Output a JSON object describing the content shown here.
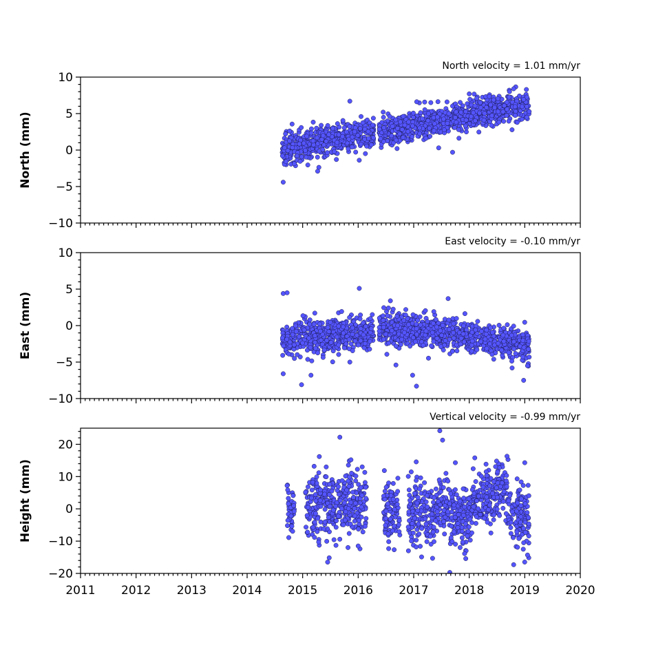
{
  "chart_data": [
    {
      "type": "scatter",
      "annotation": "North velocity = 1.01 mm/yr",
      "ylabel": "North (mm)",
      "xlim": [
        2011,
        2020
      ],
      "ylim": [
        -10,
        10
      ],
      "yticks": [
        -10,
        -5,
        0,
        5,
        10
      ],
      "xticks": [
        2011,
        2012,
        2013,
        2014,
        2015,
        2016,
        2017,
        2018,
        2019,
        2020
      ],
      "show_xtick_labels": false,
      "segments": [
        {
          "x_start": 2014.63,
          "x_end": 2016.28,
          "y_start": 0.0,
          "y_end": 2.5,
          "spread": 1.0
        },
        {
          "x_start": 2016.38,
          "x_end": 2019.08,
          "y_start": 2.5,
          "y_end": 6.3,
          "spread": 1.0
        }
      ],
      "points": [
        {
          "x": 2014.65,
          "y": -4.4
        },
        {
          "x": 2015.27,
          "y": -2.9
        },
        {
          "x": 2015.85,
          "y": 6.7
        },
        {
          "x": 2016.45,
          "y": 5.2
        },
        {
          "x": 2017.6,
          "y": 6.6
        },
        {
          "x": 2017.7,
          "y": -0.3
        },
        {
          "x": 2018.2,
          "y": 6.5
        },
        {
          "x": 2018.8,
          "y": 8.4
        },
        {
          "x": 2014.9,
          "y": -0.8
        },
        {
          "x": 2017.45,
          "y": 0.3
        }
      ]
    },
    {
      "type": "scatter",
      "annotation": "East velocity = -0.10 mm/yr",
      "ylabel": "East (mm)",
      "xlim": [
        2011,
        2020
      ],
      "ylim": [
        -10,
        10
      ],
      "yticks": [
        -10,
        -5,
        0,
        5,
        10
      ],
      "xticks": [
        2011,
        2012,
        2013,
        2014,
        2015,
        2016,
        2017,
        2018,
        2019,
        2020
      ],
      "show_xtick_labels": false,
      "segments": [
        {
          "x_start": 2014.63,
          "x_end": 2016.28,
          "y_start": -1.8,
          "y_end": -1.0,
          "spread": 1.2
        },
        {
          "x_start": 2016.38,
          "x_end": 2019.08,
          "y_start": -0.2,
          "y_end": -2.6,
          "spread": 1.1
        }
      ],
      "points": [
        {
          "x": 2014.65,
          "y": 4.4
        },
        {
          "x": 2014.72,
          "y": 4.5
        },
        {
          "x": 2016.02,
          "y": 5.1
        },
        {
          "x": 2014.98,
          "y": -8.1
        },
        {
          "x": 2016.98,
          "y": -6.8
        },
        {
          "x": 2017.05,
          "y": -8.3
        },
        {
          "x": 2015.15,
          "y": -6.8
        },
        {
          "x": 2014.65,
          "y": -6.6
        },
        {
          "x": 2018.98,
          "y": -7.5
        },
        {
          "x": 2017.62,
          "y": 3.7
        },
        {
          "x": 2016.58,
          "y": 3.4
        },
        {
          "x": 2015.85,
          "y": -5.0
        },
        {
          "x": 2016.68,
          "y": -5.4
        },
        {
          "x": 2019.05,
          "y": -5.5
        }
      ]
    },
    {
      "type": "scatter",
      "annotation": "Vertical velocity = -0.99 mm/yr",
      "ylabel": "Height (mm)",
      "xlim": [
        2011,
        2020
      ],
      "ylim": [
        -20,
        25
      ],
      "yticks": [
        -20,
        -10,
        0,
        10,
        20
      ],
      "xticks": [
        2011,
        2012,
        2013,
        2014,
        2015,
        2016,
        2017,
        2018,
        2019,
        2020
      ],
      "show_xtick_labels": true,
      "segments": [
        {
          "x_start": 2014.72,
          "x_end": 2014.85,
          "y_start": 3.0,
          "y_end": -2.0,
          "spread": 4.0
        },
        {
          "x_start": 2015.05,
          "x_end": 2016.15,
          "y_start": 1.0,
          "y_end": 2.0,
          "spread": 5.0
        },
        {
          "x_start": 2016.45,
          "x_end": 2016.75,
          "y_start": 1.0,
          "y_end": -2.0,
          "spread": 5.0
        },
        {
          "x_start": 2016.9,
          "x_end": 2018.05,
          "y_start": 0.0,
          "y_end": -3.0,
          "spread": 5.0
        },
        {
          "x_start": 2018.05,
          "x_end": 2018.7,
          "y_start": 2.0,
          "y_end": 6.0,
          "spread": 4.5
        },
        {
          "x_start": 2018.7,
          "x_end": 2019.08,
          "y_start": 0.0,
          "y_end": -3.0,
          "spread": 5.0
        }
      ],
      "points": [
        {
          "x": 2015.67,
          "y": 22.2
        },
        {
          "x": 2017.47,
          "y": 24.2
        },
        {
          "x": 2017.52,
          "y": 21.3
        },
        {
          "x": 2017.65,
          "y": -19.7
        },
        {
          "x": 2015.45,
          "y": -16.5
        },
        {
          "x": 2018.8,
          "y": -17.3
        },
        {
          "x": 2018.68,
          "y": 16.3
        },
        {
          "x": 2018.1,
          "y": 15.8
        },
        {
          "x": 2014.72,
          "y": 7.2
        },
        {
          "x": 2014.75,
          "y": -8.9
        },
        {
          "x": 2015.6,
          "y": -11.3
        },
        {
          "x": 2016.0,
          "y": -11.5
        },
        {
          "x": 2017.75,
          "y": 14.3
        },
        {
          "x": 2019.0,
          "y": 14.3
        },
        {
          "x": 2019.05,
          "y": -14.3
        },
        {
          "x": 2015.3,
          "y": 16.2
        },
        {
          "x": 2015.87,
          "y": 15.2
        }
      ]
    }
  ],
  "colors": {
    "marker_fill": "#5555ff",
    "marker_edge": "#1a1a4d",
    "frame": "#000000"
  }
}
